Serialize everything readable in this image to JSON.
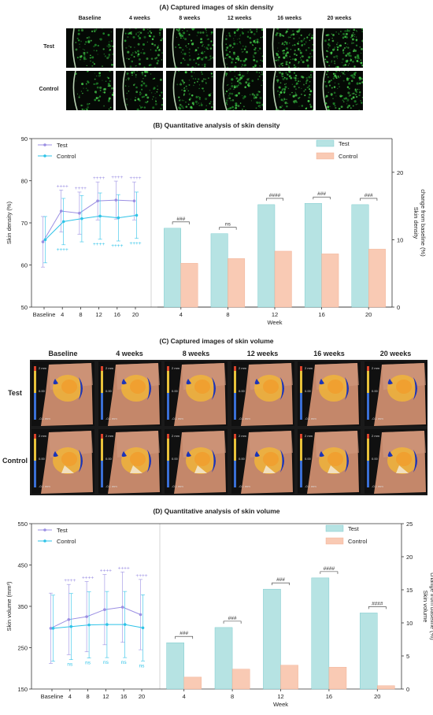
{
  "panelA": {
    "title": "(A) Captured images of skin density",
    "timepoints": [
      "Baseline",
      "4 weeks",
      "8 weeks",
      "12 weeks",
      "16 weeks",
      "20 weeks"
    ],
    "groups": [
      "Test",
      "Control"
    ]
  },
  "panelB": {
    "title": "(B) Quantitative analysis of skin density"
  },
  "panelC": {
    "title": "(C) Captured images of skin volume",
    "timepoints": [
      "Baseline",
      "4 weeks",
      "8 weeks",
      "12 weeks",
      "16 weeks",
      "20 weeks"
    ],
    "groups": [
      "Test",
      "Control"
    ],
    "scale_labels": [
      "2 mm",
      "0.00",
      "-0.1 mm"
    ]
  },
  "panelD": {
    "title": "(D) Quantitative analysis of skin volume"
  },
  "colors": {
    "test_line": "#9b8fe3",
    "control_line": "#2ec3e8",
    "test_bar": "#b6e3e3",
    "test_bar_edge": "#6cc4c6",
    "control_bar": "#f9cab4",
    "control_bar_edge": "#f0a98a",
    "axis": "#333333"
  },
  "chart_data": [
    {
      "type": "line",
      "id": "density-line",
      "categories": [
        "Baseline",
        "4",
        "8",
        "12",
        "16",
        "20"
      ],
      "ylabel": "Skin density (%)",
      "ylim": [
        50,
        90
      ],
      "yticks": [
        50,
        60,
        70,
        80,
        90
      ],
      "legend": "top-left",
      "series": [
        {
          "name": "Test",
          "values": [
            65.5,
            72.8,
            72.3,
            75.2,
            75.4,
            75.2
          ],
          "errors": [
            6.0,
            5.0,
            5.0,
            4.5,
            4.5,
            4.5
          ],
          "marks": [
            "",
            "++++",
            "++++",
            "++++",
            "++++",
            "++++"
          ]
        },
        {
          "name": "Control",
          "values": [
            66.0,
            70.3,
            71.0,
            71.6,
            71.2,
            71.8
          ],
          "errors": [
            5.5,
            5.5,
            5.5,
            5.5,
            5.5,
            5.5
          ],
          "marks": [
            "",
            "++++",
            "",
            "++++",
            "++++",
            "++++"
          ]
        }
      ]
    },
    {
      "type": "bar",
      "id": "density-bar",
      "categories": [
        "4",
        "8",
        "12",
        "16",
        "20"
      ],
      "xlabel": "Week",
      "ylabel": "Skin density change from baseline (%)",
      "ylim": [
        0,
        25
      ],
      "yticks": [
        0,
        10,
        20
      ],
      "legend": "top-right",
      "series": [
        {
          "name": "Test",
          "values": [
            11.7,
            10.9,
            15.2,
            15.4,
            15.2
          ]
        },
        {
          "name": "Control",
          "values": [
            6.5,
            7.2,
            8.3,
            7.9,
            8.6
          ]
        }
      ],
      "significance": [
        "###",
        "ns",
        "####",
        "###",
        "###"
      ]
    },
    {
      "type": "line",
      "id": "volume-line",
      "categories": [
        "Baseline",
        "4",
        "8",
        "12",
        "16",
        "20"
      ],
      "ylabel": "Skin volume (mm³)",
      "ylim": [
        150,
        550
      ],
      "yticks": [
        150,
        250,
        350,
        450,
        550
      ],
      "legend": "top-left",
      "series": [
        {
          "name": "Test",
          "values": [
            297,
            318,
            325,
            342,
            348,
            330
          ],
          "errors": [
            85,
            85,
            85,
            85,
            85,
            85
          ],
          "marks": [
            "",
            "++++",
            "++++",
            "++++",
            "++++",
            "++++"
          ]
        },
        {
          "name": "Control",
          "values": [
            297,
            301,
            305,
            306,
            306,
            298
          ],
          "errors": [
            80,
            80,
            80,
            80,
            80,
            80
          ],
          "marks": [
            "",
            "ns",
            "ns",
            "ns",
            "ns",
            "ns"
          ]
        }
      ]
    },
    {
      "type": "bar",
      "id": "volume-bar",
      "categories": [
        "4",
        "8",
        "12",
        "16",
        "20"
      ],
      "xlabel": "Week",
      "ylabel": "Skin volume change from baseline (%)",
      "ylim": [
        0,
        25
      ],
      "yticks": [
        0,
        5,
        10,
        15,
        20,
        25
      ],
      "legend": "top-right",
      "series": [
        {
          "name": "Test",
          "values": [
            7.0,
            9.3,
            15.1,
            16.8,
            11.5
          ]
        },
        {
          "name": "Control",
          "values": [
            1.8,
            3.0,
            3.6,
            3.3,
            0.5
          ]
        }
      ],
      "significance": [
        "###",
        "###",
        "###",
        "####",
        "####"
      ]
    }
  ]
}
